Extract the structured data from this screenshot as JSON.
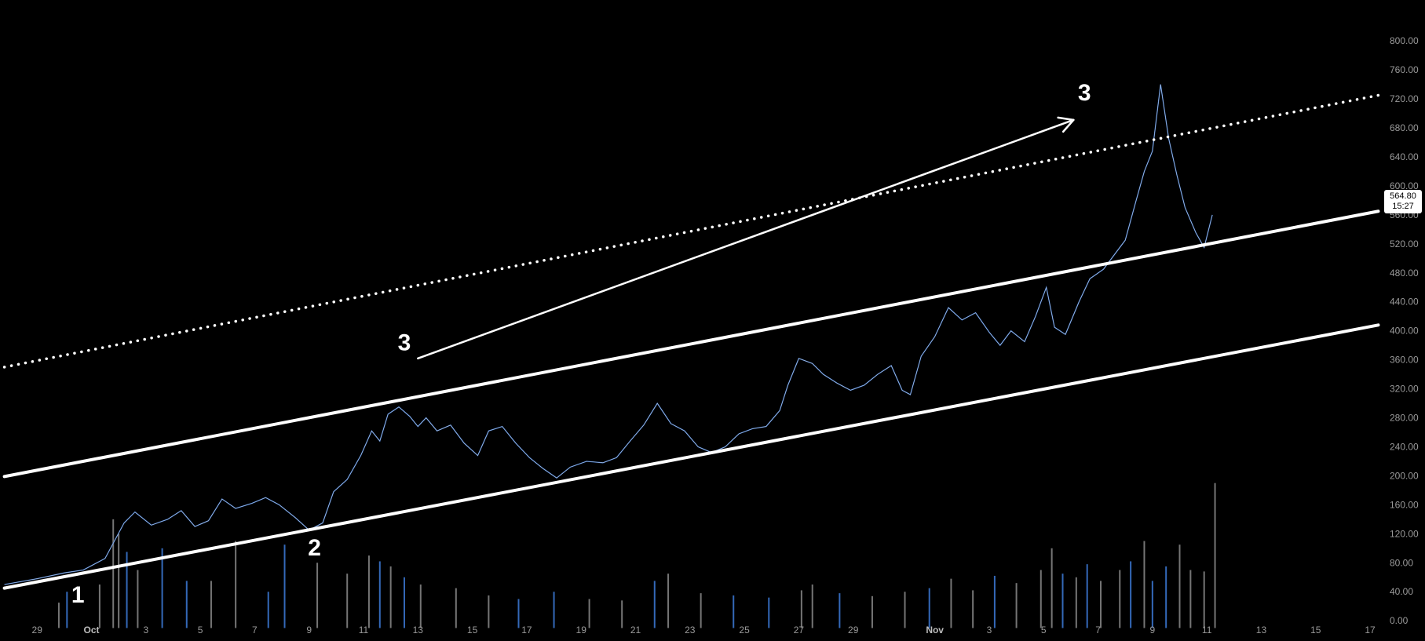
{
  "chart_data": {
    "type": "candlestick",
    "y_axis": {
      "ticks": [
        "800.00",
        "760.00",
        "720.00",
        "680.00",
        "640.00",
        "600.00",
        "560.00",
        "520.00",
        "480.00",
        "440.00",
        "400.00",
        "360.00",
        "320.00",
        "280.00",
        "240.00",
        "200.00",
        "160.00",
        "120.00",
        "80.00",
        "40.00",
        "0.00"
      ],
      "range": [
        -10,
        800
      ]
    },
    "x_axis": {
      "ticks": [
        {
          "label": "29",
          "day": -2
        },
        {
          "label": "Oct",
          "day": 0,
          "bold": true
        },
        {
          "label": "3",
          "day": 2
        },
        {
          "label": "5",
          "day": 4
        },
        {
          "label": "7",
          "day": 6
        },
        {
          "label": "9",
          "day": 8
        },
        {
          "label": "11",
          "day": 10
        },
        {
          "label": "13",
          "day": 12
        },
        {
          "label": "15",
          "day": 14
        },
        {
          "label": "17",
          "day": 16
        },
        {
          "label": "19",
          "day": 18
        },
        {
          "label": "21",
          "day": 20
        },
        {
          "label": "23",
          "day": 22
        },
        {
          "label": "25",
          "day": 24
        },
        {
          "label": "27",
          "day": 26
        },
        {
          "label": "29",
          "day": 28
        },
        {
          "label": "Nov",
          "day": 31,
          "bold": true
        },
        {
          "label": "3",
          "day": 33
        },
        {
          "label": "5",
          "day": 35
        },
        {
          "label": "7",
          "day": 37
        },
        {
          "label": "9",
          "day": 39
        },
        {
          "label": "11",
          "day": 41
        },
        {
          "label": "13",
          "day": 43
        },
        {
          "label": "15",
          "day": 45
        },
        {
          "label": "17",
          "day": 47
        }
      ]
    },
    "price_path": [
      [
        -3.2,
        50
      ],
      [
        -2,
        58
      ],
      [
        -1,
        66
      ],
      [
        -0.3,
        70
      ],
      [
        0.5,
        86
      ],
      [
        1.2,
        135
      ],
      [
        1.6,
        150
      ],
      [
        2.2,
        132
      ],
      [
        2.8,
        140
      ],
      [
        3.3,
        152
      ],
      [
        3.8,
        130
      ],
      [
        4.3,
        138
      ],
      [
        4.8,
        168
      ],
      [
        5.3,
        155
      ],
      [
        5.9,
        162
      ],
      [
        6.4,
        170
      ],
      [
        6.9,
        160
      ],
      [
        7.5,
        142
      ],
      [
        8.0,
        125
      ],
      [
        8.5,
        135
      ],
      [
        8.9,
        178
      ],
      [
        9.4,
        195
      ],
      [
        9.9,
        228
      ],
      [
        10.3,
        262
      ],
      [
        10.6,
        248
      ],
      [
        10.9,
        285
      ],
      [
        11.3,
        295
      ],
      [
        11.7,
        282
      ],
      [
        12.0,
        268
      ],
      [
        12.3,
        280
      ],
      [
        12.7,
        262
      ],
      [
        13.2,
        270
      ],
      [
        13.7,
        245
      ],
      [
        14.2,
        228
      ],
      [
        14.6,
        262
      ],
      [
        15.1,
        268
      ],
      [
        15.6,
        245
      ],
      [
        16.1,
        225
      ],
      [
        16.6,
        210
      ],
      [
        17.1,
        197
      ],
      [
        17.6,
        212
      ],
      [
        18.2,
        220
      ],
      [
        18.8,
        218
      ],
      [
        19.3,
        225
      ],
      [
        19.8,
        248
      ],
      [
        20.3,
        270
      ],
      [
        20.8,
        300
      ],
      [
        21.3,
        272
      ],
      [
        21.8,
        262
      ],
      [
        22.3,
        240
      ],
      [
        22.8,
        232
      ],
      [
        23.3,
        240
      ],
      [
        23.8,
        258
      ],
      [
        24.3,
        265
      ],
      [
        24.8,
        268
      ],
      [
        25.3,
        290
      ],
      [
        25.6,
        325
      ],
      [
        26.0,
        362
      ],
      [
        26.5,
        355
      ],
      [
        26.9,
        340
      ],
      [
        27.4,
        328
      ],
      [
        27.9,
        318
      ],
      [
        28.4,
        325
      ],
      [
        28.9,
        340
      ],
      [
        29.4,
        352
      ],
      [
        29.8,
        318
      ],
      [
        30.1,
        312
      ],
      [
        30.5,
        365
      ],
      [
        31.0,
        392
      ],
      [
        31.5,
        432
      ],
      [
        32.0,
        415
      ],
      [
        32.5,
        425
      ],
      [
        33.0,
        398
      ],
      [
        33.4,
        380
      ],
      [
        33.8,
        400
      ],
      [
        34.3,
        385
      ],
      [
        34.7,
        420
      ],
      [
        35.1,
        460
      ],
      [
        35.4,
        405
      ],
      [
        35.8,
        395
      ],
      [
        36.3,
        440
      ],
      [
        36.7,
        472
      ],
      [
        37.2,
        485
      ],
      [
        37.6,
        505
      ],
      [
        38.0,
        525
      ],
      [
        38.4,
        580
      ],
      [
        38.7,
        620
      ],
      [
        39.0,
        648
      ],
      [
        39.3,
        740
      ],
      [
        39.6,
        665
      ],
      [
        39.9,
        615
      ],
      [
        40.2,
        570
      ],
      [
        40.6,
        535
      ],
      [
        40.9,
        515
      ],
      [
        41.2,
        560
      ]
    ],
    "volume": {
      "base": -10,
      "bars": [
        [
          -1.2,
          25
        ],
        [
          -0.9,
          40
        ],
        [
          0.3,
          50
        ],
        [
          0.8,
          140
        ],
        [
          1.0,
          120
        ],
        [
          1.3,
          95
        ],
        [
          1.7,
          70
        ],
        [
          2.6,
          100
        ],
        [
          3.5,
          55
        ],
        [
          4.4,
          55
        ],
        [
          5.3,
          110
        ],
        [
          6.5,
          40
        ],
        [
          7.1,
          105
        ],
        [
          8.3,
          80
        ],
        [
          9.4,
          65
        ],
        [
          10.2,
          90
        ],
        [
          10.6,
          82
        ],
        [
          11.0,
          75
        ],
        [
          11.5,
          60
        ],
        [
          12.1,
          50
        ],
        [
          13.4,
          45
        ],
        [
          14.6,
          35
        ],
        [
          15.7,
          30
        ],
        [
          17.0,
          40
        ],
        [
          18.3,
          30
        ],
        [
          19.5,
          28
        ],
        [
          20.7,
          55
        ],
        [
          21.2,
          65
        ],
        [
          22.4,
          38
        ],
        [
          23.6,
          35
        ],
        [
          24.9,
          32
        ],
        [
          26.1,
          42
        ],
        [
          26.5,
          50
        ],
        [
          27.5,
          38
        ],
        [
          28.7,
          34
        ],
        [
          29.9,
          40
        ],
        [
          30.8,
          45
        ],
        [
          31.6,
          58
        ],
        [
          32.4,
          42
        ],
        [
          33.2,
          62
        ],
        [
          34.0,
          52
        ],
        [
          34.9,
          70
        ],
        [
          35.3,
          100
        ],
        [
          35.7,
          65
        ],
        [
          36.2,
          60
        ],
        [
          36.6,
          78
        ],
        [
          37.1,
          55
        ],
        [
          37.8,
          70
        ],
        [
          38.2,
          82
        ],
        [
          38.7,
          110
        ],
        [
          39.0,
          55
        ],
        [
          39.5,
          75
        ],
        [
          40.0,
          105
        ],
        [
          40.4,
          70
        ],
        [
          40.9,
          68
        ],
        [
          41.3,
          190
        ]
      ]
    },
    "trendlines": [
      {
        "style": "solid",
        "from": [
          -3.2,
          199
        ],
        "to": [
          47.3,
          565
        ]
      },
      {
        "style": "solid",
        "from": [
          -3.2,
          45
        ],
        "to": [
          47.3,
          408
        ]
      },
      {
        "style": "dotted",
        "from": [
          -3.2,
          350
        ],
        "to": [
          47.3,
          725
        ]
      },
      {
        "style": "arrow",
        "from": [
          12.0,
          362
        ],
        "to": [
          36.1,
          691
        ]
      }
    ],
    "wave_labels": [
      {
        "text": "1",
        "day": -0.5,
        "price": 25
      },
      {
        "text": "2",
        "day": 8.2,
        "price": 90
      },
      {
        "text": "3",
        "day": 11.5,
        "price": 373
      },
      {
        "text": "3",
        "day": 36.5,
        "price": 718
      }
    ],
    "last_price": {
      "value": "564.80",
      "timer": "15:27"
    },
    "colors": {
      "background": "#000000",
      "candle": "#3d7bd9",
      "wick": "#d9d9d9",
      "trendline": "#ffffff",
      "axis_text": "#9a9a9a"
    }
  }
}
